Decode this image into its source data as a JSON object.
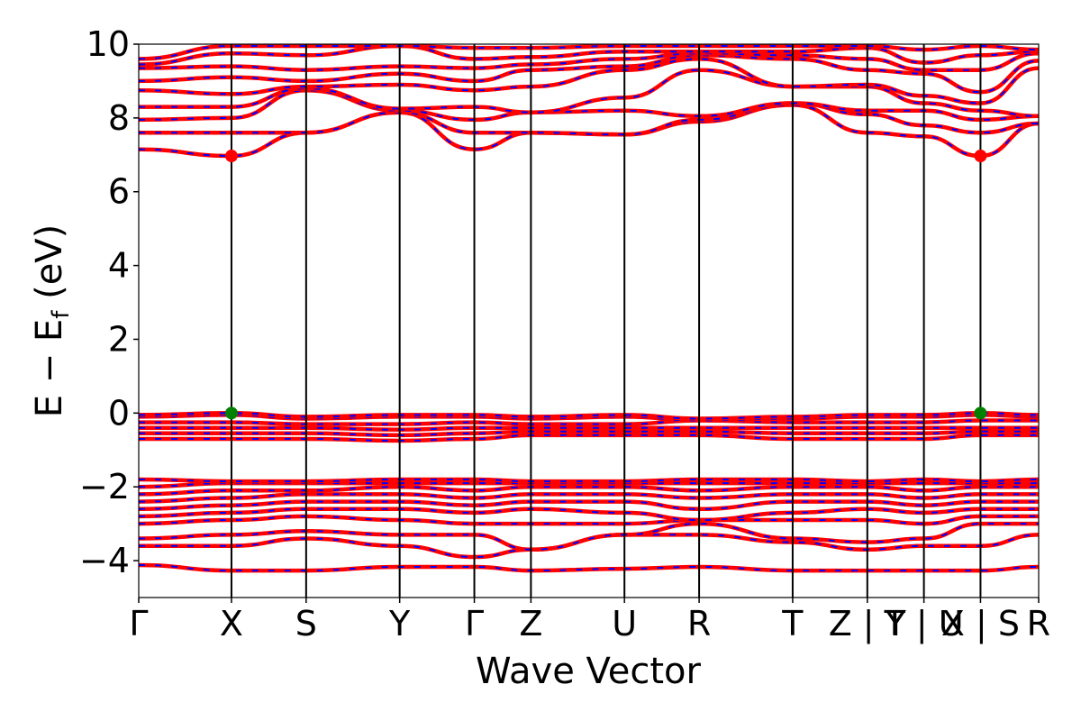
{
  "chart_data": {
    "type": "line",
    "title": "",
    "xlabel": "Wave Vector",
    "ylabel_parts": {
      "main": "E − E",
      "sub": "f",
      "unit": " (eV)"
    },
    "ylim": [
      -5,
      10
    ],
    "yticks": [
      {
        "value": 10,
        "label": "10"
      },
      {
        "value": 8,
        "label": "8"
      },
      {
        "value": 6,
        "label": "6"
      },
      {
        "value": 4,
        "label": "4"
      },
      {
        "value": 2,
        "label": "2"
      },
      {
        "value": 0,
        "label": "0"
      },
      {
        "value": -2,
        "label": "−2"
      },
      {
        "value": -4,
        "label": "−4"
      }
    ],
    "xlim": [
      0,
      11.45
    ],
    "high_symmetry_points": [
      {
        "x": 0.0,
        "label": "Γ"
      },
      {
        "x": 1.18,
        "label": "X"
      },
      {
        "x": 2.13,
        "label": "S"
      },
      {
        "x": 3.32,
        "label": "Y"
      },
      {
        "x": 4.27,
        "label": "Γ"
      },
      {
        "x": 4.99,
        "label": "Z"
      },
      {
        "x": 6.18,
        "label": "U"
      },
      {
        "x": 7.13,
        "label": "R"
      },
      {
        "x": 8.32,
        "label": "T"
      },
      {
        "x": 9.27,
        "label": "Z | Y"
      },
      {
        "x": 9.99,
        "label": "T | U"
      },
      {
        "x": 10.71,
        "label": "X | S"
      },
      {
        "x": 11.45,
        "label": "R"
      }
    ],
    "grid": false,
    "series_style": {
      "line_color": "#ff0000",
      "dash_color": "#0000ff"
    },
    "extrema": [
      {
        "kind": "cbm",
        "x": 1.18,
        "y": 6.97,
        "color": "#ff0000"
      },
      {
        "kind": "cbm",
        "x": 10.71,
        "y": 6.97,
        "color": "#ff0000"
      },
      {
        "kind": "vbm",
        "x": 1.18,
        "y": 0.0,
        "color": "#008000"
      },
      {
        "kind": "vbm",
        "x": 10.71,
        "y": 0.0,
        "color": "#008000"
      }
    ],
    "bands": [
      {
        "y": [
          -4.12,
          -4.27,
          -4.27,
          -4.17,
          -4.17,
          -4.27,
          -4.22,
          -4.17,
          -4.27,
          -4.27,
          -4.27,
          -4.27,
          -4.17
        ]
      },
      {
        "y": [
          -3.6,
          -3.6,
          -3.4,
          -3.6,
          -3.9,
          -3.7,
          -3.3,
          -3.3,
          -3.5,
          -3.7,
          -3.6,
          -3.6,
          -3.3
        ]
      },
      {
        "y": [
          -3.4,
          -3.3,
          -3.2,
          -3.3,
          -3.3,
          -3.7,
          -3.3,
          -3.0,
          -3.4,
          -3.5,
          -3.4,
          -3.0,
          -3.0
        ]
      },
      {
        "y": [
          -3.0,
          -2.9,
          -2.8,
          -2.9,
          -3.0,
          -3.0,
          -3.0,
          -2.9,
          -2.9,
          -2.9,
          -3.0,
          -2.8,
          -2.8
        ]
      },
      {
        "y": [
          -2.8,
          -2.7,
          -2.6,
          -2.6,
          -2.7,
          -2.6,
          -2.7,
          -2.9,
          -2.7,
          -2.6,
          -2.7,
          -2.6,
          -2.6
        ]
      },
      {
        "y": [
          -2.6,
          -2.5,
          -2.4,
          -2.4,
          -2.5,
          -2.4,
          -2.4,
          -2.6,
          -2.4,
          -2.4,
          -2.5,
          -2.4,
          -2.4
        ]
      },
      {
        "y": [
          -2.4,
          -2.3,
          -2.2,
          -2.2,
          -2.3,
          -2.2,
          -2.2,
          -2.3,
          -2.2,
          -2.2,
          -2.3,
          -2.2,
          -2.2
        ]
      },
      {
        "y": [
          -2.2,
          -2.1,
          -2.1,
          -2.0,
          -2.1,
          -2.0,
          -2.0,
          -2.1,
          -2.0,
          -2.0,
          -2.1,
          -2.0,
          -2.0
        ]
      },
      {
        "y": [
          -2.0,
          -1.9,
          -1.9,
          -1.9,
          -1.9,
          -1.9,
          -1.9,
          -1.9,
          -1.9,
          -1.9,
          -1.9,
          -1.9,
          -1.9
        ]
      },
      {
        "y": [
          -1.8,
          -1.85,
          -1.85,
          -1.8,
          -1.8,
          -1.85,
          -1.85,
          -1.8,
          -1.8,
          -1.85,
          -1.8,
          -1.85,
          -1.8
        ]
      },
      {
        "y": [
          -0.7,
          -0.7,
          -0.7,
          -0.75,
          -0.7,
          -0.6,
          -0.6,
          -0.6,
          -0.7,
          -0.7,
          -0.7,
          -0.6,
          -0.6
        ]
      },
      {
        "y": [
          -0.55,
          -0.55,
          -0.55,
          -0.6,
          -0.55,
          -0.5,
          -0.5,
          -0.5,
          -0.55,
          -0.55,
          -0.55,
          -0.5,
          -0.5
        ]
      },
      {
        "y": [
          -0.4,
          -0.4,
          -0.4,
          -0.45,
          -0.4,
          -0.4,
          -0.4,
          -0.4,
          -0.4,
          -0.4,
          -0.4,
          -0.4,
          -0.4
        ]
      },
      {
        "y": [
          -0.25,
          -0.25,
          -0.3,
          -0.3,
          -0.25,
          -0.3,
          -0.3,
          -0.2,
          -0.25,
          -0.25,
          -0.25,
          -0.2,
          -0.2
        ]
      },
      {
        "y": [
          -0.1,
          -0.05,
          -0.15,
          -0.1,
          -0.1,
          -0.15,
          -0.1,
          -0.2,
          -0.15,
          -0.1,
          -0.1,
          -0.05,
          -0.1
        ]
      },
      {
        "y": [
          -0.05,
          0.0,
          -0.1,
          -0.05,
          -0.05,
          -0.1,
          -0.05,
          -0.15,
          -0.1,
          -0.05,
          -0.05,
          0.0,
          -0.05
        ]
      },
      {
        "y": [
          7.15,
          6.97,
          7.6,
          8.15,
          7.15,
          7.6,
          7.55,
          7.9,
          8.35,
          7.6,
          7.5,
          6.97,
          7.85
        ]
      },
      {
        "y": [
          7.6,
          7.6,
          7.6,
          8.15,
          7.6,
          7.6,
          7.55,
          7.95,
          8.4,
          8.1,
          7.8,
          7.6,
          7.85
        ]
      },
      {
        "y": [
          7.95,
          8.0,
          8.75,
          8.2,
          7.95,
          8.15,
          8.2,
          8.05,
          8.4,
          8.2,
          8.2,
          7.95,
          8.05
        ]
      },
      {
        "y": [
          8.3,
          8.3,
          8.8,
          8.25,
          8.3,
          8.15,
          8.55,
          9.3,
          8.85,
          8.85,
          8.4,
          8.2,
          8.05
        ]
      },
      {
        "y": [
          8.75,
          8.65,
          8.85,
          8.9,
          8.75,
          8.85,
          9.3,
          9.6,
          8.85,
          8.9,
          8.6,
          8.4,
          9.35
        ]
      },
      {
        "y": [
          9.0,
          9.1,
          9.0,
          9.2,
          9.0,
          9.3,
          9.4,
          9.7,
          9.6,
          9.3,
          9.2,
          8.7,
          9.55
        ]
      },
      {
        "y": [
          9.35,
          9.4,
          9.3,
          9.4,
          9.35,
          9.45,
          9.6,
          9.75,
          9.7,
          9.6,
          9.3,
          9.3,
          9.75
        ]
      },
      {
        "y": [
          9.45,
          9.75,
          9.7,
          9.95,
          9.6,
          9.65,
          9.8,
          9.8,
          9.8,
          9.9,
          9.5,
          9.7,
          9.8
        ]
      },
      {
        "y": [
          9.6,
          9.95,
          9.95,
          9.95,
          9.9,
          9.9,
          9.95,
          9.95,
          9.95,
          9.95,
          9.85,
          9.95,
          9.85
        ]
      }
    ]
  }
}
